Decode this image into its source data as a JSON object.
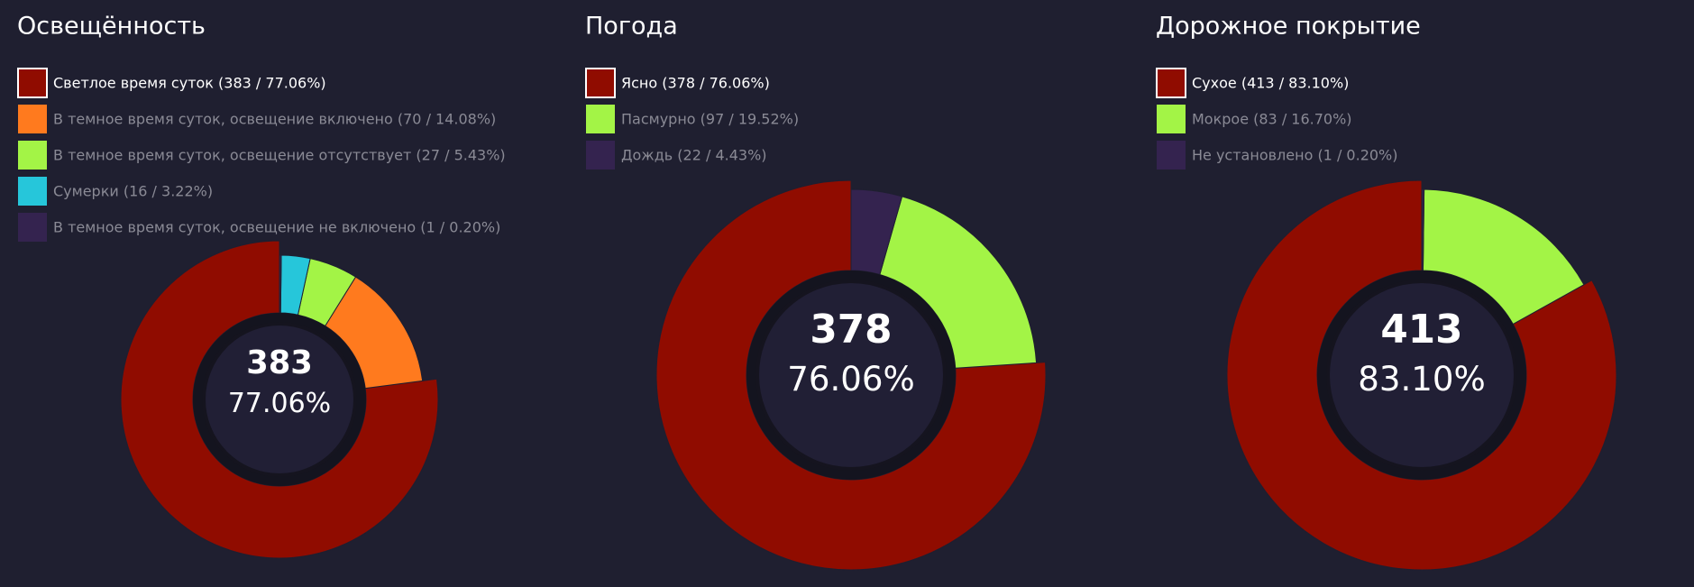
{
  "chart_data": [
    {
      "type": "donut",
      "title": "Освещённость",
      "categories": [
        "Светлое время суток (383 / 77.06%)",
        "В темное время суток, освещение включено (70 / 14.08%)",
        "В темное время суток, освещение отсутствует (27 / 5.43%)",
        "Сумерки (16 / 3.22%)",
        "В темное время суток, освещение не включено (1 / 0.20%)"
      ],
      "values": [
        383,
        70,
        27,
        16,
        1
      ],
      "percent_labels": [
        "77.06%",
        "14.08%",
        "5.43%",
        "3.22%",
        "0.20%"
      ],
      "colors": [
        "#900c00",
        "#ff7a1e",
        "#a3f446",
        "#26c6da",
        "#34234f"
      ],
      "highlight": 0
    },
    {
      "type": "donut",
      "title": "Погода",
      "categories": [
        "Ясно (378 / 76.06%)",
        "Пасмурно (97 / 19.52%)",
        "Дождь (22 / 4.43%)"
      ],
      "values": [
        378,
        97,
        22
      ],
      "percent_labels": [
        "76.06%",
        "19.52%",
        "4.43%"
      ],
      "colors": [
        "#900c00",
        "#a3f446",
        "#34234f"
      ],
      "highlight": 0
    },
    {
      "type": "donut",
      "title": "Дорожное покрытие",
      "categories": [
        "Сухое (413 / 83.10%)",
        "Мокрое (83 / 16.70%)",
        "Не установлено (1 / 0.20%)"
      ],
      "values": [
        413,
        83,
        1
      ],
      "percent_labels": [
        "83.10%",
        "16.70%",
        "0.20%"
      ],
      "colors": [
        "#900c00",
        "#a3f446",
        "#34234f"
      ],
      "highlight": 0
    }
  ]
}
